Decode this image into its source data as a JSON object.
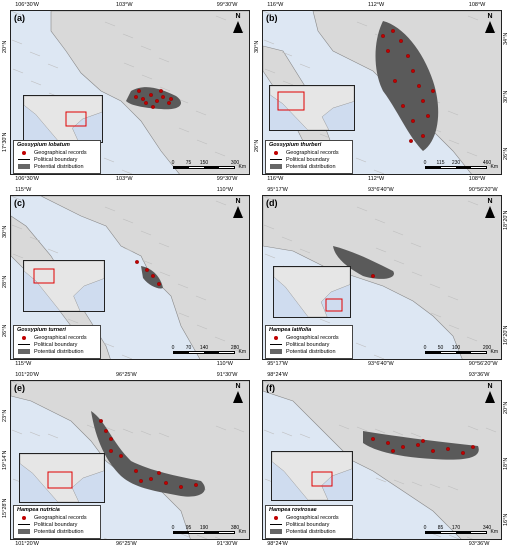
{
  "legend_items": {
    "records": "Geographical records",
    "boundary": "Political boundary",
    "distribution": "Potential distribution"
  },
  "scale_unit": "Km",
  "panels": [
    {
      "label": "(a)",
      "species": "Gossypium lobatum",
      "north": "N",
      "top_ticks": [
        "106°30'W",
        "103°W",
        "99°30'W"
      ],
      "bottom_ticks": [
        "106°30'W",
        "103°W",
        "99°30'W"
      ],
      "left_ticks": [
        "20°N",
        "17°30'N"
      ],
      "right_ticks": [],
      "scale_ticks": [
        "0",
        "75",
        "150",
        "300"
      ]
    },
    {
      "label": "(b)",
      "species": "Gossypium thurberi",
      "north": "N",
      "top_ticks": [
        "116°W",
        "112°W",
        "108°W"
      ],
      "bottom_ticks": [
        "116°W",
        "112°W",
        "108°W"
      ],
      "left_ticks": [
        "30°N",
        "26°N"
      ],
      "right_ticks": [
        "34°N",
        "30°N",
        "26°N"
      ],
      "scale_ticks": [
        "0",
        "115",
        "230",
        "460"
      ]
    },
    {
      "label": "(c)",
      "species": "Gossypium turneri",
      "north": "N",
      "top_ticks": [
        "115°W",
        "110°W"
      ],
      "bottom_ticks": [
        "115°W",
        "110°W"
      ],
      "left_ticks": [
        "30°N",
        "28°N",
        "26°N"
      ],
      "right_ticks": [],
      "scale_ticks": [
        "0",
        "70",
        "140",
        "280"
      ]
    },
    {
      "label": "(d)",
      "species": "Hampea latifolia",
      "north": "N",
      "top_ticks": [
        "95°17'W",
        "93°6'40\"W",
        "90°56'20\"W"
      ],
      "bottom_ticks": [
        "95°17'W",
        "93°6'40\"W",
        "90°56'20\"W"
      ],
      "left_ticks": [],
      "right_ticks": [
        "18°20'N",
        "16°20'N"
      ],
      "scale_ticks": [
        "0",
        "50",
        "100",
        "200"
      ]
    },
    {
      "label": "(e)",
      "species": "Hampea nutricia",
      "north": "N",
      "top_ticks": [
        "101°20'W",
        "96°25'W",
        "91°30'W"
      ],
      "bottom_ticks": [
        "101°20'W",
        "96°25'W",
        "91°30'W"
      ],
      "left_ticks": [
        "23°N",
        "19°14'N",
        "15°28'N"
      ],
      "right_ticks": [],
      "scale_ticks": [
        "0",
        "95",
        "190",
        "380"
      ]
    },
    {
      "label": "(f)",
      "species": "Hampea rovirosae",
      "north": "N",
      "top_ticks": [
        "98°24'W",
        "93°36'W"
      ],
      "bottom_ticks": [
        "98°24'W",
        "93°36'W"
      ],
      "left_ticks": [],
      "right_ticks": [
        "20°N",
        "18°N",
        "16°N"
      ],
      "scale_ticks": [
        "0",
        "85",
        "170",
        "340"
      ]
    }
  ]
}
